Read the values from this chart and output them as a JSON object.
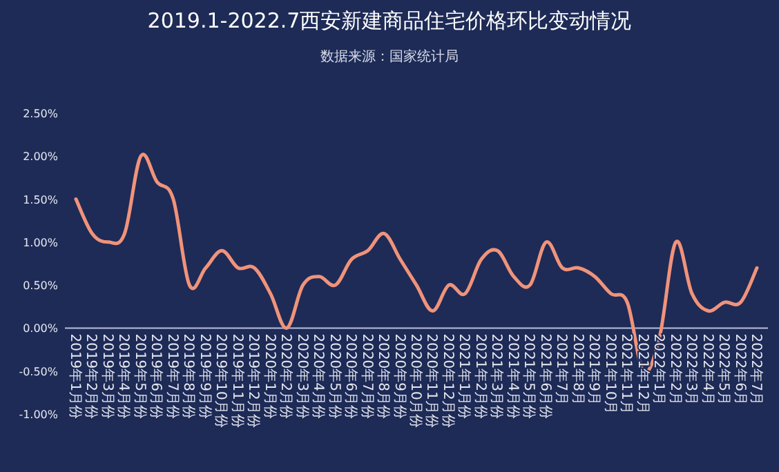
{
  "chart_data": {
    "type": "line",
    "title": "2019.1-2022.7西安新建商品住宅价格环比变动情况",
    "annotations": [
      "数据来源：国家统计局"
    ],
    "categories": [
      "2019年1月份",
      "2019年2月份",
      "2019年3月份",
      "2019年4月份",
      "2019年5月份",
      "2019年6月份",
      "2019年7月份",
      "2019年8月份",
      "2019年9月份",
      "2019年10月份",
      "2019年11月份",
      "2019年12月份",
      "2020年1月份",
      "2020年2月份",
      "2020年3月份",
      "2020年4月份",
      "2020年5月份",
      "2020年6月份",
      "2020年7月份",
      "2020年8月份",
      "2020年9月份",
      "2020年10月份",
      "2020年11月份",
      "2020年12月份",
      "2021年1月份",
      "2021年2月份",
      "2021年3月份",
      "2021年4月份",
      "2021年5月份",
      "2021年6月份",
      "2021年7月",
      "2021年8月",
      "2021年9月",
      "2021年10月",
      "2021年11月",
      "2021年12月",
      "2022年1月",
      "2022年2月",
      "2022年3月",
      "2022年4月",
      "2022年5月",
      "2022年6月",
      "2022年7月"
    ],
    "values": [
      1.5,
      1.1,
      1.0,
      1.1,
      2.0,
      1.7,
      1.5,
      0.5,
      0.7,
      0.9,
      0.7,
      0.7,
      0.4,
      0.0,
      0.5,
      0.6,
      0.5,
      0.8,
      0.9,
      1.1,
      0.8,
      0.5,
      0.2,
      0.5,
      0.4,
      0.8,
      0.9,
      0.6,
      0.5,
      1.0,
      0.7,
      0.7,
      0.6,
      0.4,
      0.3,
      -0.5,
      -0.1,
      1.0,
      0.4,
      0.2,
      0.3,
      0.3,
      0.7
    ],
    "color": "#f0937a",
    "ylim": [
      -1,
      2.5
    ],
    "yticks": [
      {
        "value": -1,
        "label": "-1.00%"
      },
      {
        "value": -0.5,
        "label": "-0.50%"
      },
      {
        "value": 0,
        "label": "0.00%"
      },
      {
        "value": 0.5,
        "label": "0.50%"
      },
      {
        "value": 1,
        "label": "1.00%"
      },
      {
        "value": 1.5,
        "label": "1.50%"
      },
      {
        "value": 2,
        "label": "2.00%"
      },
      {
        "value": 2.5,
        "label": "2.50%"
      }
    ],
    "grid": false,
    "marker": "none"
  }
}
